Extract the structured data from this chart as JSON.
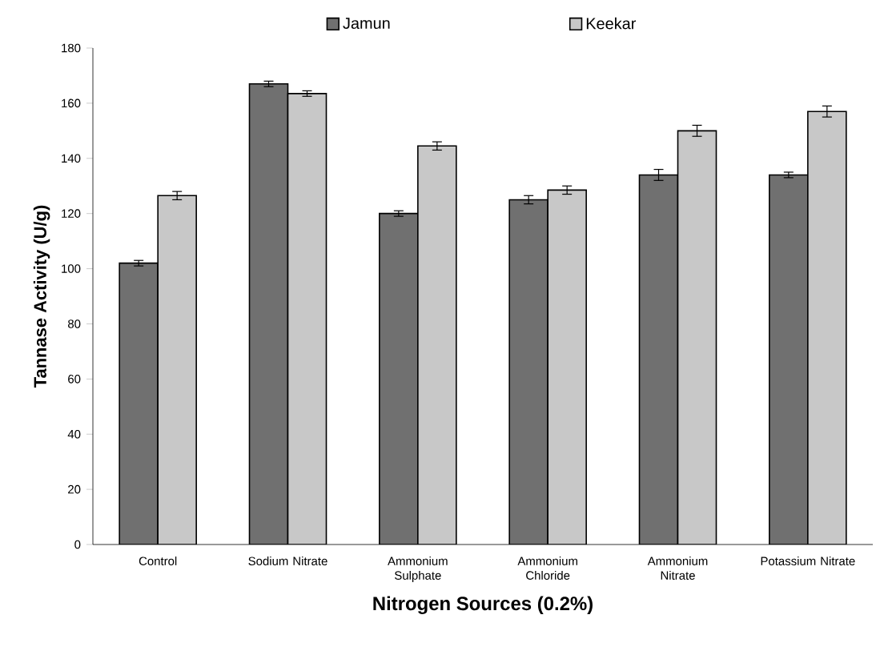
{
  "chart_data": {
    "type": "bar",
    "xlabel": "Nitrogen Sources (0.2%)",
    "ylabel": "Tannase Activity (U/g)",
    "categories": [
      "Control",
      "Sodium Nitrate",
      "Ammonium Sulphate",
      "Ammonium Chloride",
      "Ammonium Nitrate",
      "Potassium Nitrate"
    ],
    "series": [
      {
        "name": "Jamun",
        "color": "#707070",
        "values": [
          102,
          167,
          120,
          125,
          134,
          134
        ],
        "errors": [
          1,
          1,
          1,
          1.5,
          2,
          1
        ]
      },
      {
        "name": "Keekar",
        "color": "#c8c8c8",
        "values": [
          126.5,
          163.5,
          144.5,
          128.5,
          150,
          157
        ],
        "errors": [
          1.5,
          1,
          1.5,
          1.5,
          2,
          2
        ]
      }
    ],
    "ylim": [
      0,
      180
    ],
    "yticks": [
      0,
      20,
      40,
      60,
      80,
      100,
      120,
      140,
      160,
      180
    ],
    "legend": "top",
    "grid": false
  }
}
